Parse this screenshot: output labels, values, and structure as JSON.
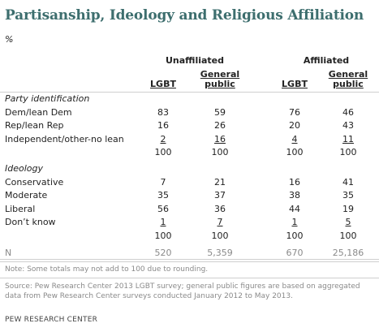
{
  "title": "Partisanship, Ideology and Religious Affiliation",
  "unit": "%",
  "groups": {
    "unaffiliated": "Unaffiliated",
    "affiliated": "Affiliated"
  },
  "columns": {
    "lgbt": "LGBT",
    "general_public": "General public"
  },
  "chart_data": {
    "type": "table",
    "title": "Partisanship, Ideology and Religious Affiliation",
    "unit": "%",
    "column_groups": [
      "Unaffiliated",
      "Affiliated"
    ],
    "columns": [
      "Unaffiliated LGBT",
      "Unaffiliated General public",
      "Affiliated LGBT",
      "Affiliated General public"
    ],
    "sections": [
      {
        "name": "Party identification",
        "rows": [
          {
            "label": "Dem/lean Dem",
            "values": [
              "83",
              "59",
              "76",
              "46"
            ]
          },
          {
            "label": "Rep/lean Rep",
            "values": [
              "16",
              "26",
              "20",
              "43"
            ]
          },
          {
            "label": "Independent/other-no lean",
            "values": [
              "2",
              "16",
              "4",
              "11"
            ]
          },
          {
            "label": "",
            "values": [
              "100",
              "100",
              "100",
              "100"
            ]
          }
        ]
      },
      {
        "name": "Ideology",
        "rows": [
          {
            "label": "Conservative",
            "values": [
              "7",
              "21",
              "16",
              "41"
            ]
          },
          {
            "label": "Moderate",
            "values": [
              "35",
              "37",
              "38",
              "35"
            ]
          },
          {
            "label": "Liberal",
            "values": [
              "56",
              "36",
              "44",
              "19"
            ]
          },
          {
            "label": "Don’t know",
            "values": [
              "1",
              "7",
              "1",
              "5"
            ]
          },
          {
            "label": "",
            "values": [
              "100",
              "100",
              "100",
              "100"
            ]
          }
        ]
      }
    ],
    "n_row": {
      "label": "N",
      "values": [
        "520",
        "5,359",
        "670",
        "25,186"
      ]
    }
  },
  "note": "Note: Some totals may not add to 100 due to rounding.",
  "source": "Source: Pew Research Center 2013 LGBT survey; general public figures are based on aggregated data from Pew Research Center surveys conducted January 2012 to May 2013.",
  "credit": "PEW RESEARCH CENTER",
  "colors": {
    "title": "#3d6e6e",
    "muted": "#8a8a8a",
    "rule": "#cfcfcf"
  }
}
